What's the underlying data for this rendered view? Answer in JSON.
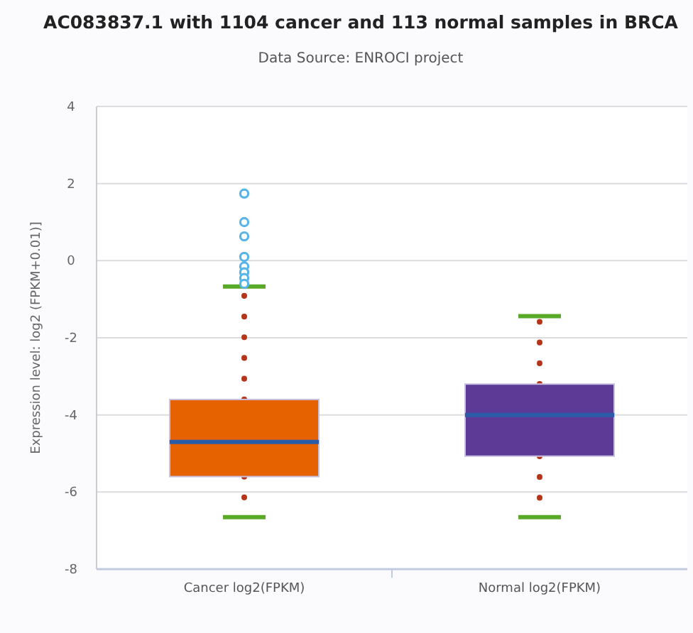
{
  "chart_data": {
    "type": "box",
    "title": "AC083837.1 with 1104 cancer and 113 normal samples in BRCA",
    "subtitle": "Data Source: ENROCI project",
    "ylabel": "Expression level: log2 (FPKM+0.01)]",
    "categories": [
      "Cancer log2(FPKM)",
      "Normal log2(FPKM)"
    ],
    "colors": [
      "#e66100",
      "#5c3a96"
    ],
    "boxes": [
      {
        "low": -6.65,
        "q1": -5.6,
        "q3": -3.6,
        "median": -4.7,
        "high": -0.67,
        "outliers": [
          1.74,
          1.0,
          0.63,
          0.1,
          -0.15,
          -0.3,
          -0.45,
          -0.6
        ]
      },
      {
        "low": -6.65,
        "q1": -5.07,
        "q3": -3.2,
        "median": -4.0,
        "high": -1.44
      }
    ],
    "ylim": [
      -8,
      4
    ],
    "yticks": [
      -8,
      -6,
      -4,
      -2,
      0,
      2,
      4
    ],
    "grid": "y",
    "line_style": "dotted"
  }
}
